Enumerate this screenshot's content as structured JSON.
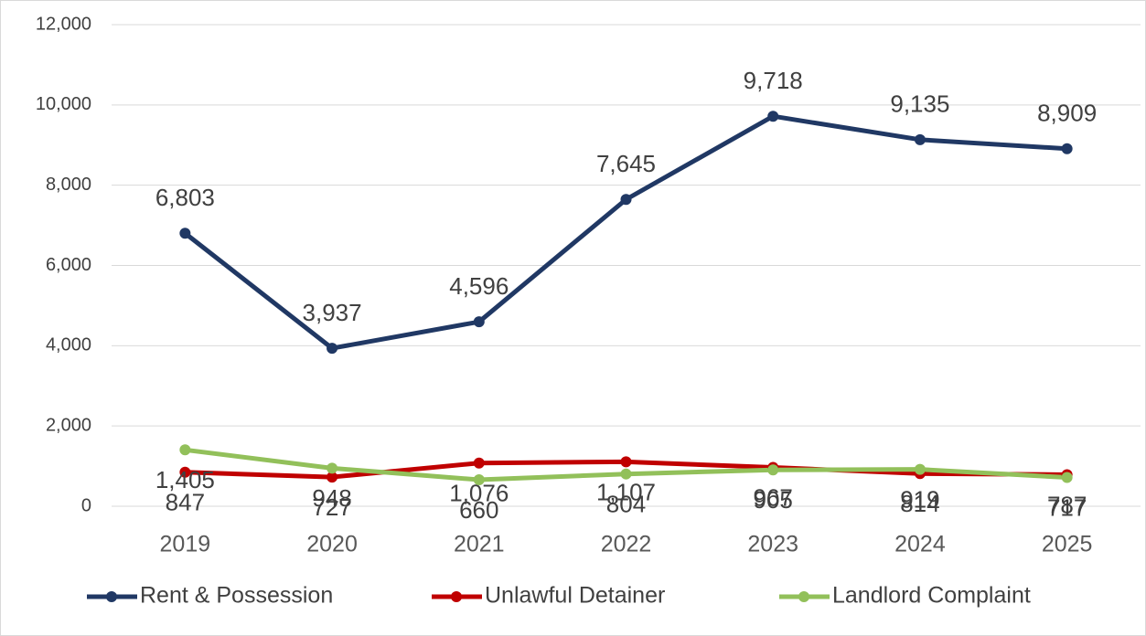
{
  "chart_data": {
    "type": "line",
    "categories": [
      "2019",
      "2020",
      "2021",
      "2022",
      "2023",
      "2024",
      "2025"
    ],
    "series": [
      {
        "name": "Rent & Possession",
        "color": "#203864",
        "values": [
          6803,
          3937,
          4596,
          7645,
          9718,
          9135,
          8909
        ],
        "value_labels": [
          "6,803",
          "3,937",
          "4,596",
          "7,645",
          "9,718",
          "9,135",
          "8,909"
        ]
      },
      {
        "name": "Unlawful Detainer",
        "color": "#c00000",
        "values": [
          847,
          727,
          1076,
          1107,
          967,
          814,
          787
        ],
        "value_labels": [
          "847",
          "727",
          "1,076",
          "1,107",
          "967",
          "814",
          "787"
        ]
      },
      {
        "name": "Landlord Complaint",
        "color": "#92c05a",
        "values": [
          1405,
          948,
          660,
          804,
          905,
          919,
          717
        ],
        "value_labels": [
          "1,405",
          "948",
          "660",
          "804",
          "905",
          "919",
          "717"
        ]
      }
    ],
    "ylim": [
      0,
      12000
    ],
    "yticks": [
      0,
      {
        "value": 2000,
        "label": "2,000"
      },
      {
        "value": 4000,
        "label": "4,000"
      },
      {
        "value": 6000,
        "label": "6,000"
      },
      {
        "value": 8000,
        "label": "8,000"
      },
      {
        "value": 10000,
        "label": "10,000"
      },
      {
        "value": 12000,
        "label": "12,000"
      }
    ],
    "grid": true,
    "legend": "bottom"
  }
}
